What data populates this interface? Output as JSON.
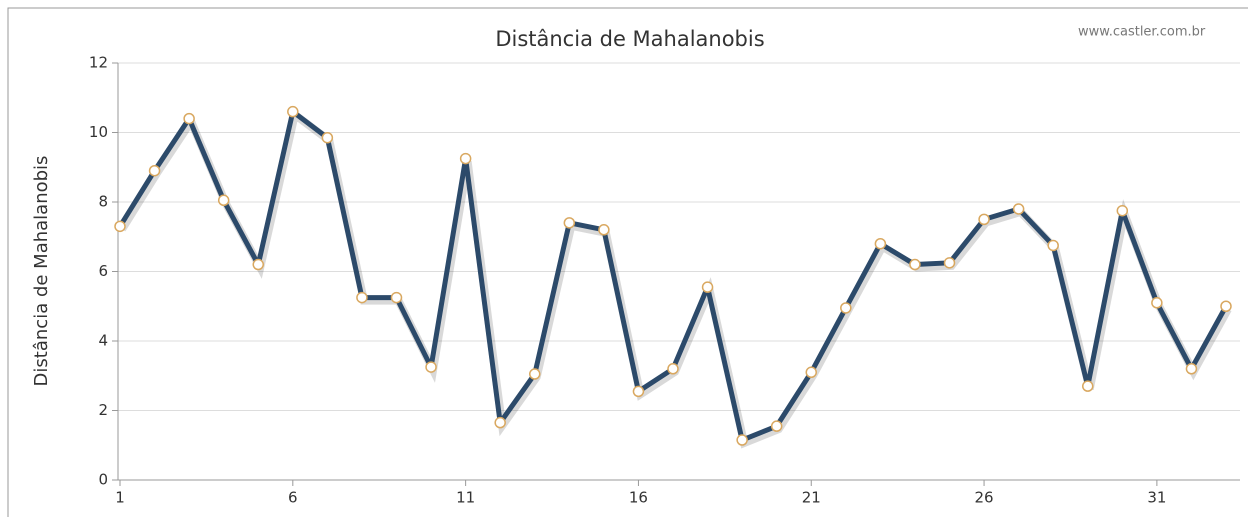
{
  "chart_data": {
    "type": "line",
    "title": "Distância de Mahalanobis",
    "credit": "www.castler.com.br",
    "ylabel": "Distância de Mahalanobis",
    "x": [
      1,
      2,
      3,
      4,
      5,
      6,
      7,
      8,
      9,
      10,
      11,
      12,
      13,
      14,
      15,
      16,
      17,
      18,
      19,
      20,
      21,
      22,
      23,
      24,
      25,
      26,
      27,
      28,
      29,
      30,
      31,
      32,
      33
    ],
    "series": [
      {
        "name": "Distância de Mahalanobis",
        "color": "#2c4a6a",
        "values": [
          7.3,
          8.9,
          10.4,
          8.05,
          6.2,
          10.6,
          9.85,
          5.25,
          5.25,
          3.25,
          9.25,
          1.65,
          3.05,
          7.4,
          7.2,
          2.55,
          3.2,
          5.55,
          1.15,
          1.55,
          3.1,
          4.95,
          6.8,
          6.2,
          6.25,
          7.5,
          7.8,
          6.75,
          2.7,
          7.75,
          5.1,
          3.2,
          5.0
        ]
      }
    ],
    "xlim": [
      1,
      33
    ],
    "xticks": [
      1,
      6,
      11,
      16,
      21,
      26,
      31
    ],
    "ylim": [
      0,
      12
    ],
    "yticks": [
      0,
      2,
      4,
      6,
      8,
      10,
      12
    ],
    "grid": true
  }
}
